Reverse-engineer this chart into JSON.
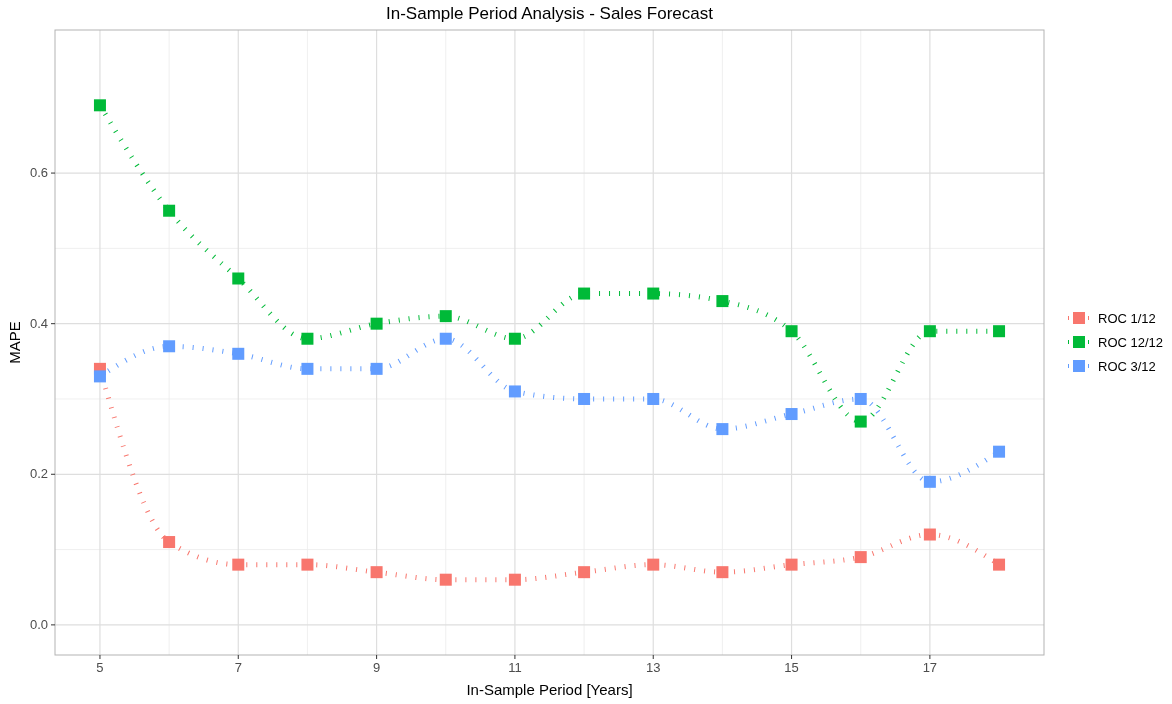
{
  "chart_data": {
    "type": "line",
    "title": "In-Sample Period Analysis - Sales Forecast",
    "xlabel": "In-Sample Period [Years]",
    "ylabel": "MAPE",
    "x": [
      5,
      6,
      7,
      8,
      9,
      10,
      11,
      12,
      13,
      14,
      15,
      16,
      17,
      18
    ],
    "series": [
      {
        "name": "ROC 1/12",
        "color": "#f8766d",
        "values": [
          0.34,
          0.11,
          0.08,
          0.08,
          0.07,
          0.06,
          0.06,
          0.07,
          0.08,
          0.07,
          0.08,
          0.09,
          0.12,
          0.08
        ]
      },
      {
        "name": "ROC 12/12",
        "color": "#00ba38",
        "values": [
          0.69,
          0.55,
          0.46,
          0.38,
          0.4,
          0.41,
          0.38,
          0.44,
          0.44,
          0.43,
          0.39,
          0.27,
          0.39,
          0.39
        ]
      },
      {
        "name": "ROC 3/12",
        "color": "#619cff",
        "values": [
          0.33,
          0.37,
          0.36,
          0.34,
          0.34,
          0.38,
          0.31,
          0.3,
          0.3,
          0.26,
          0.28,
          0.3,
          0.19,
          0.23
        ]
      }
    ],
    "xlim": [
      4.35,
      18.65
    ],
    "xticks": [
      5,
      7,
      9,
      11,
      13,
      15,
      17
    ],
    "ylim": [
      -0.04,
      0.79
    ],
    "yticks": [
      {
        "value": 0,
        "label": "0.0"
      },
      {
        "value": 0.2,
        "label": "0.2"
      },
      {
        "value": 0.4,
        "label": "0.4"
      },
      {
        "value": 0.6,
        "label": "0.6"
      }
    ],
    "grid": true,
    "legend": "right",
    "marker": "square",
    "line_style": "dotted"
  }
}
